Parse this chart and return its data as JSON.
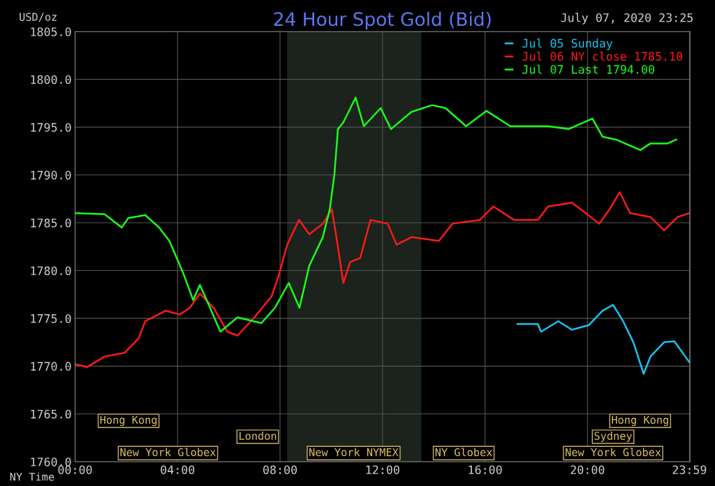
{
  "chart_data": {
    "type": "line",
    "title": "24 Hour Spot Gold (Bid)",
    "xlabel": "NY Time",
    "ylabel": "USD/oz",
    "xlim": [
      0,
      24
    ],
    "xticks": [
      {
        "value": 0,
        "label": "00:00"
      },
      {
        "value": 4,
        "label": "04:00"
      },
      {
        "value": 8,
        "label": "08:00"
      },
      {
        "value": 12,
        "label": "12:00"
      },
      {
        "value": 16,
        "label": "16:00"
      },
      {
        "value": 20,
        "label": "20:00"
      },
      {
        "value": 23.98,
        "label": "23:59"
      }
    ],
    "ylim": [
      1760,
      1805
    ],
    "yticks": [
      {
        "value": 1760,
        "label": "1760.0"
      },
      {
        "value": 1765,
        "label": "1765.0"
      },
      {
        "value": 1770,
        "label": "1770.0"
      },
      {
        "value": 1775,
        "label": "1775.0"
      },
      {
        "value": 1780,
        "label": "1780.0"
      },
      {
        "value": 1785,
        "label": "1785.0"
      },
      {
        "value": 1790,
        "label": "1790.0"
      },
      {
        "value": 1795,
        "label": "1795.0"
      },
      {
        "value": 1800,
        "label": "1800.0"
      },
      {
        "value": 1805,
        "label": "1805.0"
      }
    ],
    "grid": true,
    "legend": "top right",
    "bands": [
      {
        "axis": "x",
        "from": 8.3,
        "to": 13.5,
        "color": "#1c221c"
      }
    ],
    "series": [
      {
        "name": "Jul 05 Sunday",
        "color": "#19c3f0",
        "x": [
          17.26,
          18.06,
          18.19,
          18.86,
          19.39,
          20.06,
          20.59,
          21.0,
          21.39,
          21.79,
          22.19,
          22.46,
          22.99,
          23.39,
          23.98
        ],
        "values": [
          1774.4,
          1774.4,
          1773.6,
          1774.7,
          1773.8,
          1774.3,
          1775.8,
          1776.4,
          1774.7,
          1772.5,
          1769.2,
          1771,
          1772.5,
          1772.6,
          1770.4
        ]
      },
      {
        "name": "Jul 06 NY close 1785.10",
        "color": "#ff1a1a",
        "x": [
          0,
          0.48,
          1.15,
          1.94,
          2.48,
          2.74,
          3.54,
          4.08,
          4.48,
          4.87,
          5.41,
          5.94,
          6.34,
          7.0,
          7.67,
          7.94,
          8.28,
          8.74,
          9.14,
          9.67,
          10.02,
          10.2,
          10.47,
          10.74,
          11.13,
          11.53,
          12.2,
          12.55,
          13.13,
          14.2,
          14.73,
          15.8,
          16.33,
          17.13,
          18.06,
          18.46,
          19.39,
          19.93,
          20.46,
          20.86,
          21.26,
          21.66,
          22.46,
          22.99,
          23.52,
          23.98
        ],
        "values": [
          1770.2,
          1769.9,
          1771,
          1771.4,
          1772.9,
          1774.7,
          1775.8,
          1775.4,
          1776.1,
          1777.6,
          1776.1,
          1773.6,
          1773.2,
          1775.1,
          1777.3,
          1779.4,
          1782.7,
          1785.3,
          1783.8,
          1784.9,
          1786.4,
          1783.5,
          1778.7,
          1780.9,
          1781.3,
          1785.3,
          1784.9,
          1782.7,
          1783.5,
          1783.1,
          1784.9,
          1785.3,
          1786.7,
          1785.3,
          1785.3,
          1786.7,
          1787.1,
          1786,
          1784.9,
          1786.4,
          1788.2,
          1786,
          1785.6,
          1784.2,
          1785.6,
          1786
        ]
      },
      {
        "name": "Jul 07 Last 1794.00",
        "color": "#19ff19",
        "x": [
          0,
          1.15,
          1.82,
          2.08,
          2.74,
          3.28,
          3.68,
          4.21,
          4.61,
          4.87,
          5.27,
          5.67,
          6.34,
          7.27,
          7.8,
          8.34,
          8.76,
          9.14,
          9.67,
          9.94,
          10.12,
          10.26,
          10.47,
          10.95,
          11.27,
          11.93,
          12.33,
          13.13,
          13.93,
          14.46,
          15.26,
          16.06,
          16.99,
          18.46,
          19.26,
          20.19,
          20.59,
          21.12,
          22.06,
          22.46,
          23.12,
          23.47
        ],
        "values": [
          1786,
          1785.9,
          1784.5,
          1785.5,
          1785.8,
          1784.5,
          1783.1,
          1779.8,
          1776.9,
          1778.5,
          1776.1,
          1773.6,
          1775.1,
          1774.5,
          1776.1,
          1778.7,
          1776.1,
          1780.5,
          1783.5,
          1786.4,
          1790,
          1794.8,
          1795.5,
          1798.1,
          1795.1,
          1797,
          1794.8,
          1796.6,
          1797.3,
          1797,
          1795.1,
          1796.7,
          1795.1,
          1795.1,
          1794.8,
          1795.9,
          1794,
          1793.7,
          1792.6,
          1793.3,
          1793.3,
          1793.7
        ]
      }
    ],
    "annotations": [
      "July 07, 2020 23:25",
      "Hong Kong",
      "Hong Kong",
      "London",
      "Sydney",
      "New York Globex",
      "New York NYMEX",
      "NY Globex",
      "New York Globex"
    ]
  }
}
